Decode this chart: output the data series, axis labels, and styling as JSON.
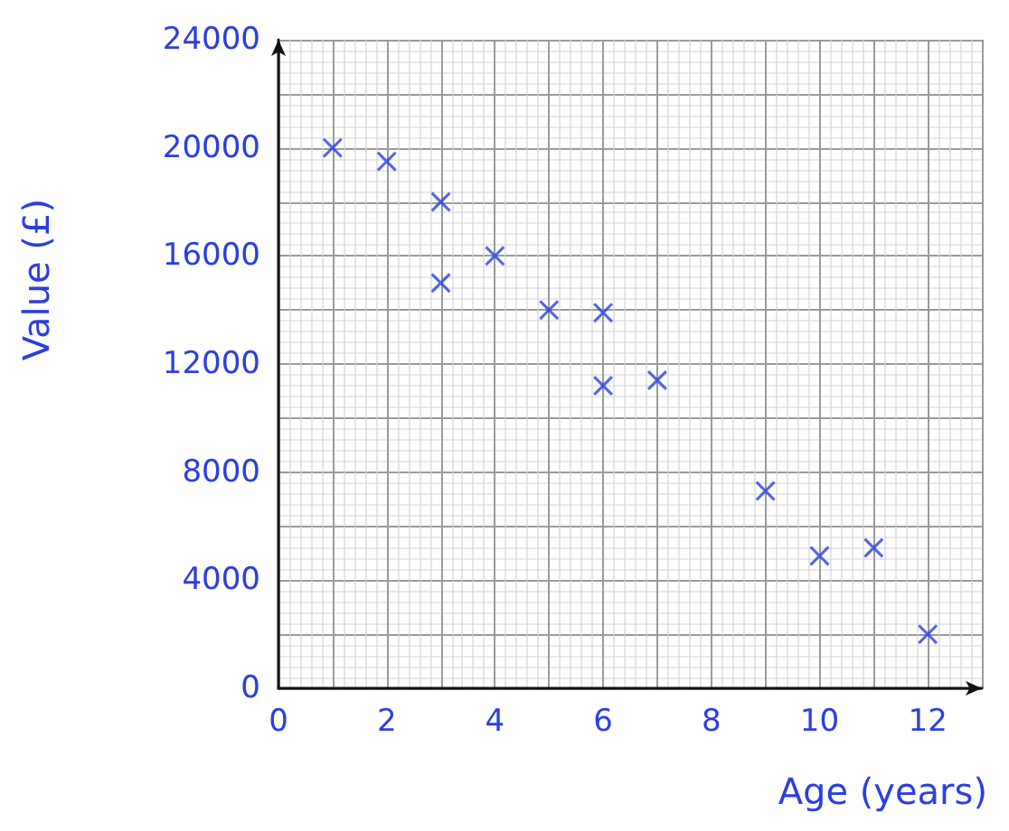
{
  "chart_data": {
    "type": "scatter",
    "xlabel": "Age (years)",
    "ylabel": "Value (£)",
    "x": [
      1,
      2,
      3,
      3,
      4,
      5,
      6,
      6,
      7,
      9,
      10,
      11,
      12
    ],
    "values": [
      20000,
      19500,
      18000,
      15000,
      16000,
      14000,
      13900,
      11200,
      11400,
      7300,
      4900,
      5200,
      2000
    ],
    "color": "#2b3fe0",
    "marker": "cross",
    "grid": true,
    "xlim": [
      0,
      13
    ],
    "xticks": [
      0,
      2,
      4,
      6,
      8,
      10,
      12
    ],
    "ylim": [
      0,
      24000
    ],
    "yticks": [
      0,
      4000,
      8000,
      12000,
      16000,
      20000,
      24000
    ]
  }
}
